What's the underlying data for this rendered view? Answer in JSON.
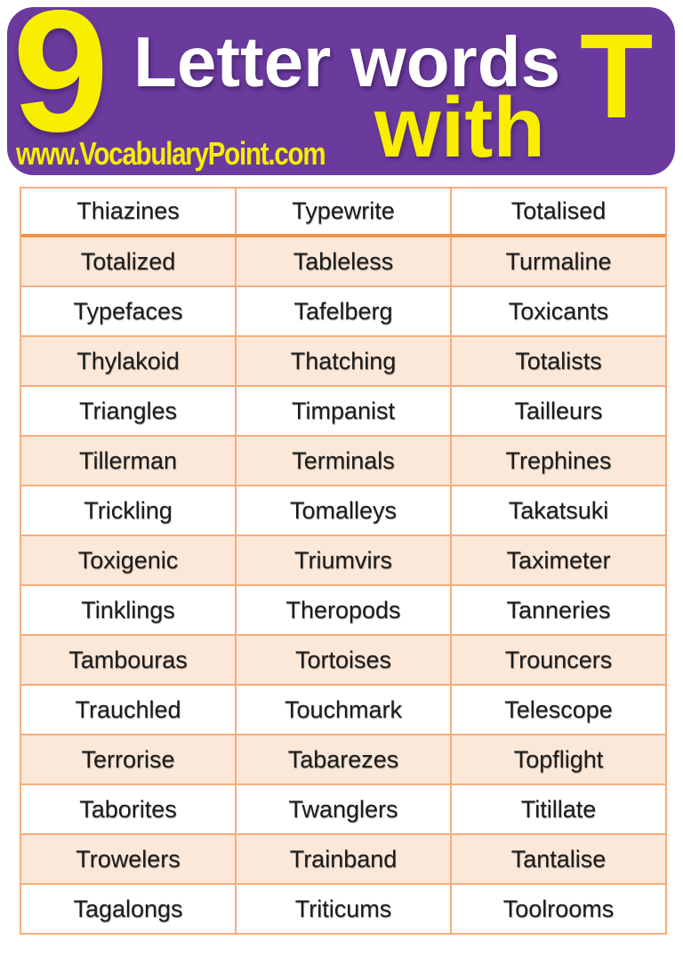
{
  "header": {
    "big_number": "9",
    "title": "Letter words",
    "subtitle": "with",
    "letter": "T",
    "website": "www.VocabularyPoint.com"
  },
  "colors": {
    "header_bg": "#6a3a9d",
    "accent_yellow": "#f7ee00",
    "title_white": "#ffffff",
    "row_peach": "#fce8d8",
    "row_white": "#ffffff",
    "grid_border": "#f5ad7c",
    "grid_border_thick": "#ef9349",
    "word_text": "#1c1c1c"
  },
  "word_table": {
    "columns": 3,
    "rows": [
      [
        "Thiazines",
        "Typewrite",
        "Totalised"
      ],
      [
        "Totalized",
        "Tableless",
        "Turmaline"
      ],
      [
        "Typefaces",
        "Tafelberg",
        "Toxicants"
      ],
      [
        "Thylakoid",
        "Thatching",
        "Totalists"
      ],
      [
        "Triangles",
        "Timpanist",
        "Tailleurs"
      ],
      [
        "Tillerman",
        "Terminals",
        "Trephines"
      ],
      [
        "Trickling",
        "Tomalleys",
        "Takatsuki"
      ],
      [
        "Toxigenic",
        "Triumvirs",
        "Taximeter"
      ],
      [
        "Tinklings",
        "Theropods",
        "Tanneries"
      ],
      [
        "Tambouras",
        "Tortoises",
        "Trouncers"
      ],
      [
        "Trauchled",
        "Touchmark",
        "Telescope"
      ],
      [
        "Terrorise",
        "Tabarezes",
        "Topflight"
      ],
      [
        "Taborites",
        "Twanglers",
        "Titillate"
      ],
      [
        "Trowelers",
        "Trainband",
        "Tantalise"
      ],
      [
        "Tagalongs",
        "Triticums",
        "Toolrooms"
      ]
    ]
  }
}
